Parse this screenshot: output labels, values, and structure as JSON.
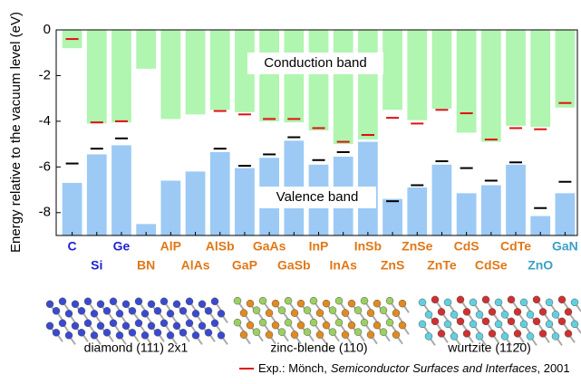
{
  "chart_data": {
    "type": "bar",
    "y_label": "Energy relative to the vacuum level (eV)",
    "categories": [
      "C",
      "Si",
      "Ge",
      "BN",
      "AlP",
      "AlAs",
      "AlSb",
      "GaP",
      "GaAs",
      "GaSb",
      "InP",
      "InAs",
      "InSb",
      "ZnS",
      "ZnSe",
      "ZnTe",
      "CdS",
      "CdSe",
      "CdTe",
      "ZnO",
      "GaN"
    ],
    "category_colors": [
      "#2020d8",
      "#2020d8",
      "#2020d8",
      "#e07818",
      "#e07818",
      "#e07818",
      "#e07818",
      "#e07818",
      "#e07818",
      "#e07818",
      "#e07818",
      "#e07818",
      "#e07818",
      "#e07818",
      "#e07818",
      "#e07818",
      "#e07818",
      "#e07818",
      "#e07818",
      "#3ca0c8",
      "#3ca0c8"
    ],
    "series": [
      {
        "name": "Conduction band",
        "color": "#b0f5b0",
        "values": [
          -0.8,
          -4.1,
          -4.05,
          -1.7,
          -3.9,
          -3.7,
          -3.5,
          -3.6,
          -4.0,
          -4.05,
          -4.4,
          -5.0,
          -4.8,
          -3.5,
          -3.95,
          -3.45,
          -4.5,
          -4.9,
          -4.2,
          -4.25,
          -3.4
        ]
      },
      {
        "name": "Valence band",
        "color": "#9ccaf5",
        "values": [
          -6.7,
          -5.45,
          -5.05,
          -8.5,
          -6.6,
          -6.2,
          -5.35,
          -6.05,
          -5.6,
          -4.85,
          -5.9,
          -5.55,
          -4.9,
          -7.4,
          -6.9,
          -5.9,
          -7.15,
          -6.8,
          -5.9,
          -8.15,
          -7.15
        ]
      }
    ],
    "exp_valence": {
      "color": "#000000",
      "values": [
        -5.85,
        -5.2,
        -4.75,
        null,
        null,
        null,
        -5.2,
        -5.95,
        -5.45,
        -4.7,
        -5.7,
        -5.35,
        -4.6,
        -7.5,
        -6.8,
        -5.75,
        -6.05,
        -6.6,
        -5.8,
        -7.8,
        -6.65
      ]
    },
    "exp_conduction": {
      "color": "#e01010",
      "values": [
        -0.4,
        -4.05,
        -4.0,
        null,
        null,
        null,
        -3.55,
        -3.7,
        -3.9,
        -3.9,
        -4.3,
        -4.9,
        -4.6,
        -3.85,
        -4.1,
        -3.5,
        -3.65,
        -4.8,
        -4.3,
        -4.35,
        -3.2
      ]
    },
    "ylim": [
      -9,
      0
    ],
    "yticks": [
      0,
      -2,
      -4,
      -6,
      -8
    ],
    "structures": [
      "diamond (111) 2x1",
      "zinc-blende (110)",
      "wurtzite (112̄0)"
    ],
    "legend_note": [
      "Exp.: Mönch,",
      "Semiconductor Surfaces and Interfaces",
      ", 2001"
    ]
  }
}
